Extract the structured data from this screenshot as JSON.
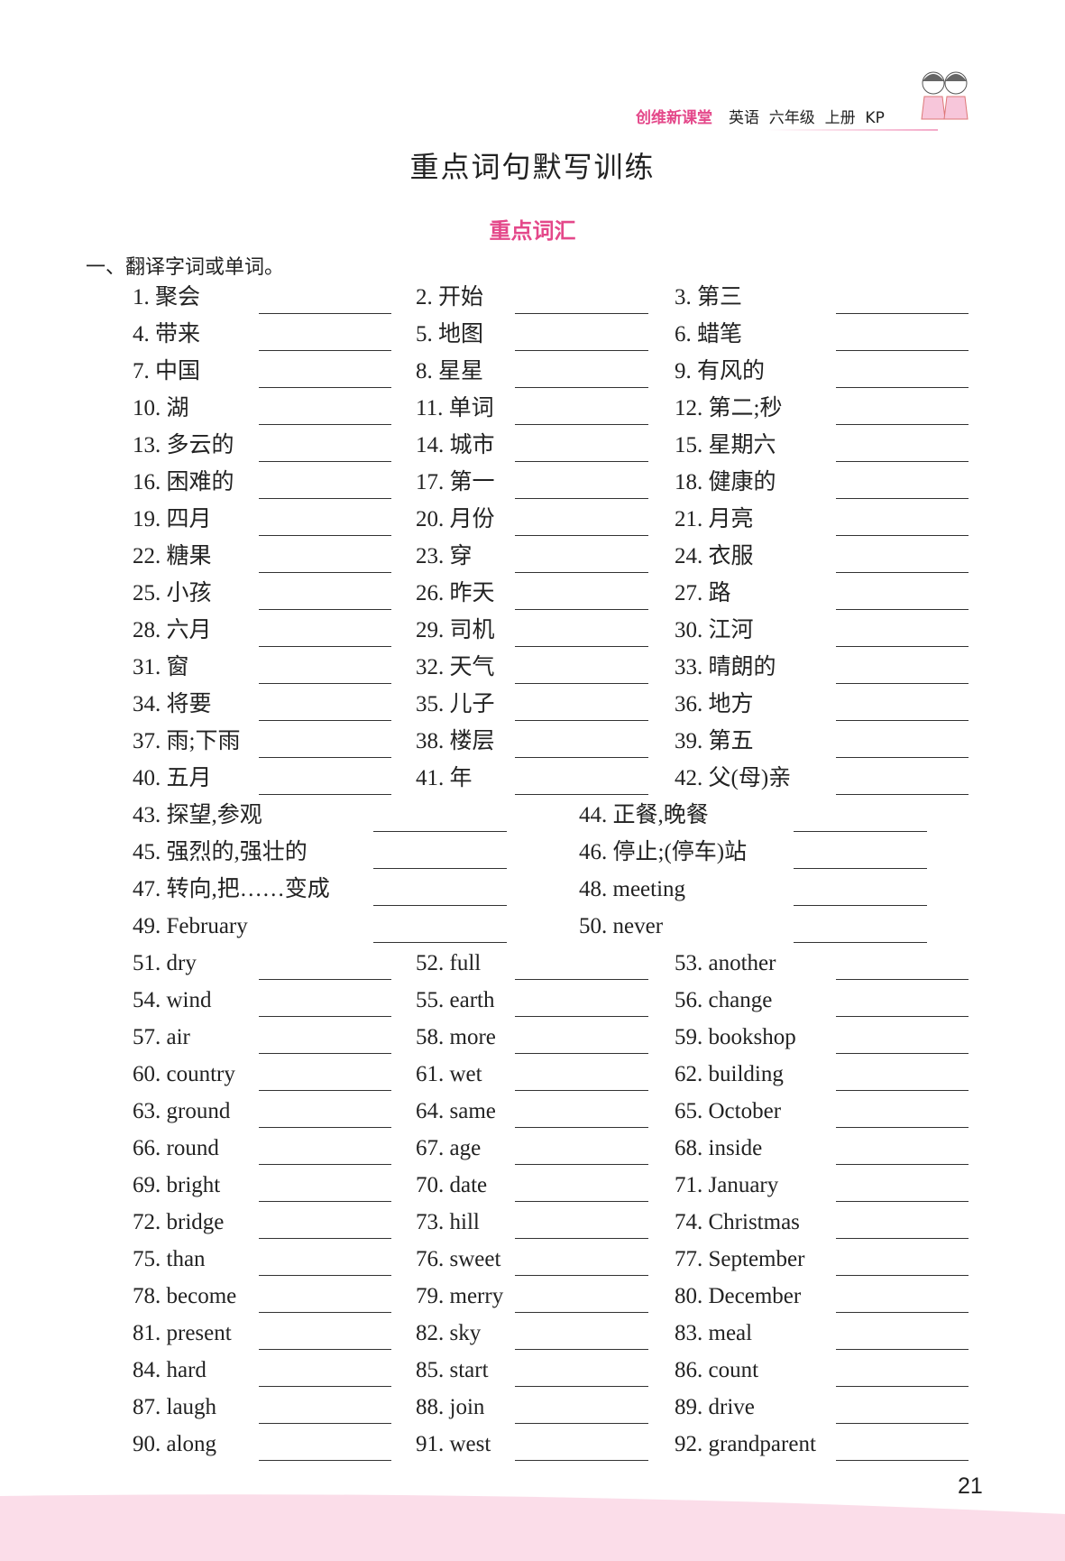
{
  "header": {
    "brand": "创维新课堂",
    "subject": "英语  六年级  上册  KP"
  },
  "title": "重点词句默写训练",
  "subtitle": "重点词汇",
  "section": "一、翻译字词或单词。",
  "rows3_a": [
    [
      "1. 聚会",
      "2. 开始",
      "3. 第三"
    ],
    [
      "4. 带来",
      "5. 地图",
      "6. 蜡笔"
    ],
    [
      "7. 中国",
      "8. 星星",
      "9. 有风的"
    ],
    [
      "10. 湖",
      "11. 单词",
      "12. 第二;秒"
    ],
    [
      "13. 多云的",
      "14. 城市",
      "15. 星期六"
    ],
    [
      "16. 困难的",
      "17. 第一",
      "18. 健康的"
    ],
    [
      "19. 四月",
      "20. 月份",
      "21. 月亮"
    ],
    [
      "22. 糖果",
      "23. 穿",
      "24. 衣服"
    ],
    [
      "25. 小孩",
      "26. 昨天",
      "27. 路"
    ],
    [
      "28. 六月",
      "29. 司机",
      "30. 江河"
    ],
    [
      "31. 窗",
      "32. 天气",
      "33. 晴朗的"
    ],
    [
      "34. 将要",
      "35. 儿子",
      "36. 地方"
    ],
    [
      "37. 雨;下雨",
      "38. 楼层",
      "39. 第五"
    ],
    [
      "40. 五月",
      "41. 年",
      "42. 父(母)亲"
    ]
  ],
  "rows2": [
    [
      "43. 探望,参观",
      "44. 正餐,晚餐"
    ],
    [
      "45. 强烈的,强壮的",
      "46. 停止;(停车)站"
    ],
    [
      "47. 转向,把……变成",
      "48. meeting"
    ],
    [
      "49. February",
      "50. never"
    ]
  ],
  "rows3_b": [
    [
      "51. dry",
      "52. full",
      "53. another"
    ],
    [
      "54. wind",
      "55. earth",
      "56. change"
    ],
    [
      "57. air",
      "58. more",
      "59. bookshop"
    ],
    [
      "60. country",
      "61. wet",
      "62. building"
    ],
    [
      "63. ground",
      "64. same",
      "65. October"
    ],
    [
      "66. round",
      "67. age",
      "68. inside"
    ],
    [
      "69. bright",
      "70. date",
      "71. January"
    ],
    [
      "72. bridge",
      "73. hill",
      "74. Christmas"
    ],
    [
      "75. than",
      "76. sweet",
      "77. September"
    ],
    [
      "78. become",
      "79. merry",
      "80. December"
    ],
    [
      "81. present",
      "82. sky",
      "83. meal"
    ],
    [
      "84. hard",
      "85. start",
      "86. count"
    ],
    [
      "87. laugh",
      "88. join",
      "89. drive"
    ],
    [
      "90. along",
      "91. west",
      "92. grandparent"
    ]
  ],
  "page_number": "21",
  "colors": {
    "accent": "#e4488a",
    "band": "#fbdde9"
  }
}
